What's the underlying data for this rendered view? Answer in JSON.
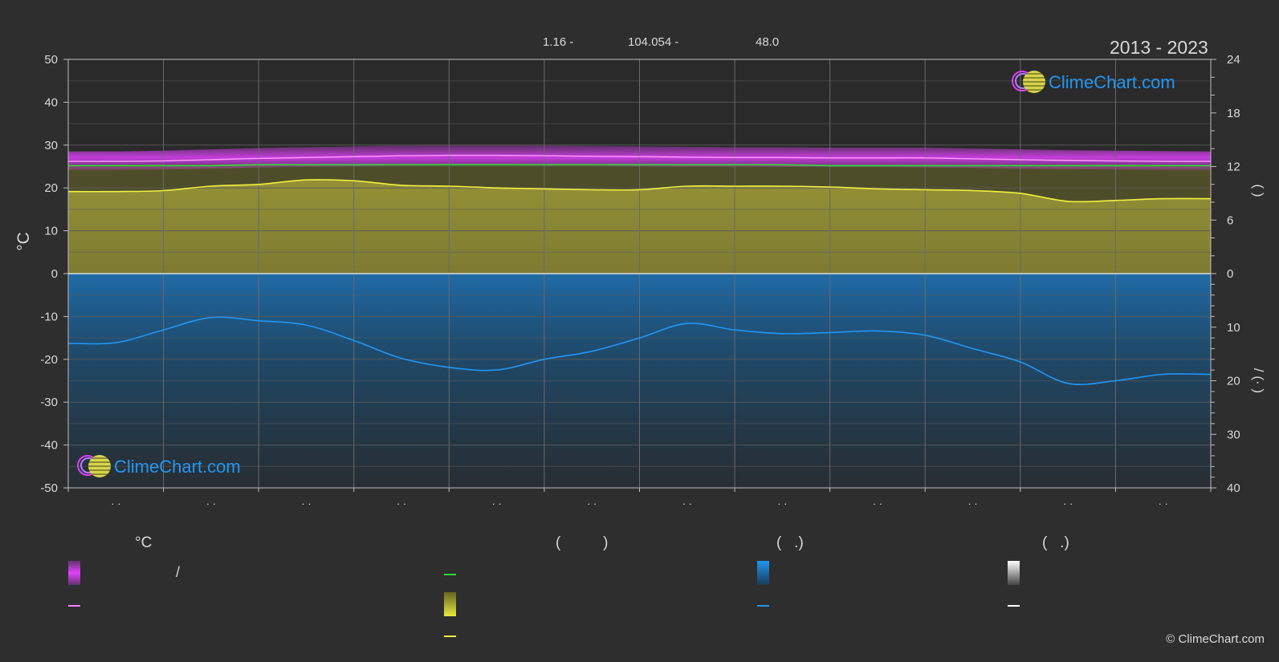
{
  "header": {
    "years": "2013 - 2023",
    "coords": [
      "1.16 -",
      "104.054 -",
      "48.0"
    ]
  },
  "colors": {
    "background": "#2e2e2e",
    "max_min_band": "#e040fb",
    "mean_temp_line": "#ff9bff",
    "sunshine_band": "#a8a630",
    "sunshine_line": "#f0f040",
    "daylight_line": "#33dd33",
    "rain_band": "#1c6aa8",
    "rain_line": "#2196f3",
    "snow_line": "#ffffff"
  },
  "chart_data": {
    "type": "line",
    "years": "2013 - 2023",
    "x": [
      0,
      0.5,
      1,
      1.5,
      2,
      2.5,
      3,
      3.5,
      4,
      4.5,
      5,
      5.5,
      6,
      6.5,
      7,
      7.5,
      8,
      8.5,
      9,
      9.5,
      10,
      10.5,
      11,
      11.5,
      12
    ],
    "x_tick_labels": [
      "· ·",
      "· ·",
      "· ·",
      "· ·",
      "· ·",
      "· ·",
      "· ·",
      "· ·",
      "· ·",
      "· ·",
      "· ·",
      "· ·"
    ],
    "left_axis": {
      "label": "°C",
      "ylim": [
        -50,
        50
      ],
      "ticks": [
        50,
        40,
        30,
        20,
        10,
        0,
        -10,
        -20,
        -30,
        -40,
        -50
      ]
    },
    "right_axis_top": {
      "label": "( )",
      "ylim": [
        0,
        24
      ],
      "ticks": [
        24,
        18,
        12,
        6,
        0
      ]
    },
    "right_axis_bottom": {
      "label": "/ (· )",
      "ylim": [
        0,
        40
      ],
      "ticks": [
        0,
        10,
        20,
        30,
        40
      ]
    },
    "grid": true,
    "series": [
      {
        "key": "mean_temp",
        "axis": "temp",
        "values": [
          26.2,
          26.2,
          26.3,
          26.6,
          26.9,
          27.1,
          27.3,
          27.5,
          27.6,
          27.6,
          27.5,
          27.4,
          27.3,
          27.2,
          27.1,
          27.1,
          27.0,
          27.0,
          27.0,
          26.8,
          26.6,
          26.4,
          26.3,
          26.2,
          26.2
        ]
      },
      {
        "key": "max_temp",
        "axis": "temp",
        "values": [
          28.5,
          28.5,
          28.7,
          29.0,
          29.3,
          29.5,
          29.7,
          29.9,
          30.0,
          30.0,
          29.9,
          29.8,
          29.7,
          29.6,
          29.5,
          29.5,
          29.4,
          29.4,
          29.4,
          29.2,
          29.0,
          28.8,
          28.7,
          28.6,
          28.5
        ]
      },
      {
        "key": "min_temp",
        "axis": "temp",
        "values": [
          24.2,
          24.2,
          24.3,
          24.5,
          24.8,
          25.0,
          25.1,
          25.2,
          25.3,
          25.3,
          25.2,
          25.2,
          25.1,
          25.0,
          25.0,
          24.9,
          24.9,
          24.9,
          24.8,
          24.7,
          24.5,
          24.4,
          24.3,
          24.2,
          24.2
        ]
      },
      {
        "key": "daylight",
        "axis": "hours",
        "values": [
          12.1,
          12.1,
          12.1,
          12.1,
          12.2,
          12.2,
          12.2,
          12.2,
          12.2,
          12.2,
          12.2,
          12.2,
          12.2,
          12.2,
          12.2,
          12.2,
          12.1,
          12.1,
          12.1,
          12.1,
          12.1,
          12.1,
          12.1,
          12.1,
          12.1
        ]
      },
      {
        "key": "sunshine",
        "axis": "hours",
        "values": [
          9.2,
          9.2,
          9.3,
          9.8,
          10.0,
          10.5,
          10.4,
          9.9,
          9.8,
          9.6,
          9.5,
          9.4,
          9.4,
          9.8,
          9.8,
          9.8,
          9.7,
          9.5,
          9.4,
          9.3,
          9.0,
          8.1,
          8.2,
          8.4,
          8.4
        ]
      },
      {
        "key": "precipitation",
        "axis": "mm",
        "values": [
          13.0,
          12.9,
          10.5,
          8.2,
          8.8,
          9.6,
          12.5,
          15.8,
          17.5,
          18.0,
          16.0,
          14.5,
          12.0,
          9.3,
          10.5,
          11.2,
          11.0,
          10.7,
          11.5,
          14.0,
          16.5,
          20.5,
          20.0,
          18.8,
          18.8
        ]
      }
    ]
  },
  "legend": {
    "headers": [
      "°C",
      "(          )",
      "(   .)",
      "(   .)"
    ],
    "temp_row_label": "/",
    "copyright": "© ClimeChart.com"
  },
  "logos": [
    {
      "text": "ClimeChart.com"
    },
    {
      "text": "ClimeChart.com"
    }
  ]
}
